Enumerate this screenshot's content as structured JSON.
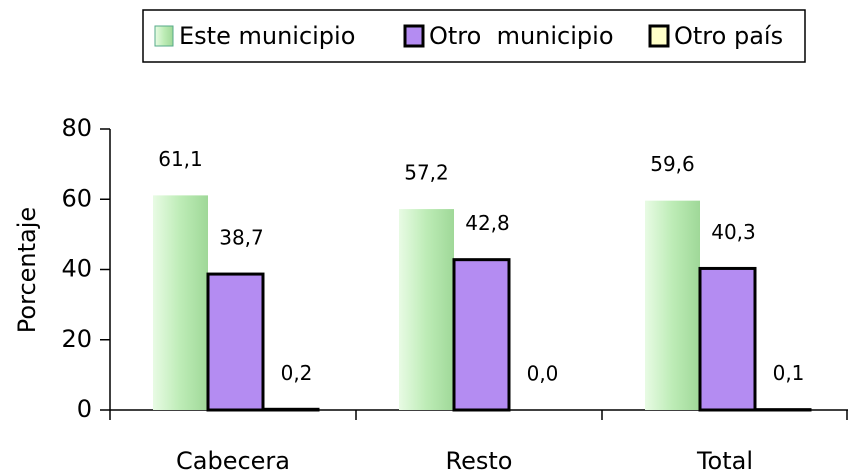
{
  "chart_data": {
    "type": "bar",
    "y_label": "Porcentaje",
    "categories": [
      "Cabecera",
      "Resto",
      "Total"
    ],
    "series": [
      {
        "name": "Este municipio",
        "color": "#bdecb6",
        "values": [
          61.1,
          57.2,
          59.6
        ],
        "value_labels": [
          "61,1",
          "57,2",
          "59,6"
        ]
      },
      {
        "name": "Otro  municipio",
        "color": "#b48cf2",
        "values": [
          38.7,
          42.8,
          40.3
        ],
        "value_labels": [
          "38,7",
          "42,8",
          "40,3"
        ]
      },
      {
        "name": "Otro país",
        "color": "#ffffc8",
        "values": [
          0.2,
          0.0,
          0.1
        ],
        "value_labels": [
          "0,2",
          "0,0",
          "0,1"
        ]
      }
    ],
    "ylim": [
      0,
      80
    ],
    "yticks": [
      0,
      20,
      40,
      60,
      80
    ],
    "legend": "top"
  }
}
